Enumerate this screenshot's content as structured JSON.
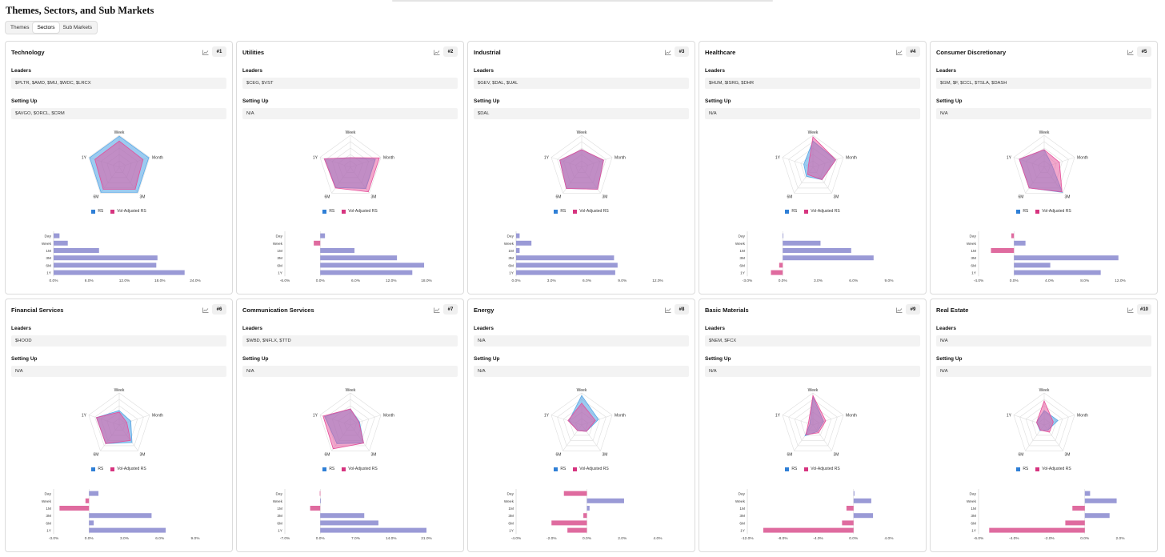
{
  "page": {
    "title": "Themes, Sectors, and Sub Markets"
  },
  "tabs": [
    {
      "label": "Themes",
      "active": false
    },
    {
      "label": "Sectors",
      "active": true
    },
    {
      "label": "Sub Markets",
      "active": false
    }
  ],
  "labels": {
    "leaders": "Leaders",
    "setting_up": "Setting Up",
    "legend_rs": "RS",
    "legend_vol": "Vol-Adjusted RS"
  },
  "colors": {
    "rs_fill": "#5aa9e6",
    "vol_fill": "#e54f9a",
    "overlap": "#9d8ac2",
    "bar_pos": "#9a9ad6",
    "bar_neg": "#df6b9f"
  },
  "radar_axes": [
    "Week",
    "Month",
    "3M",
    "6M",
    "1Y"
  ],
  "bar_categories": [
    "Day",
    "Week",
    "1M",
    "3M",
    "6M",
    "1Y"
  ],
  "cards": [
    {
      "title": "Technology",
      "rank": "#1",
      "leaders": "$PLTR, $AMD, $MU, $WDC, $LRCX",
      "setting_up": "$AVGO, $ORCL, $CRM",
      "chart_data": {
        "type": "bar",
        "categories": [
          "Day",
          "Week",
          "1M",
          "3M",
          "6M",
          "1Y"
        ],
        "values": [
          1.0,
          2.4,
          7.7,
          17.6,
          17.4,
          22.2
        ],
        "ticks": [
          "0.0%",
          "6.0%",
          "12.0%",
          "18.0%",
          "24.0%"
        ],
        "xlim": [
          0,
          24
        ]
      },
      "radar": {
        "rs": [
          0.97,
          0.97,
          0.97,
          0.97,
          0.97
        ],
        "vol": [
          0.82,
          0.78,
          0.85,
          0.85,
          0.8
        ]
      }
    },
    {
      "title": "Utilities",
      "rank": "#2",
      "leaders": "$CEG, $VST",
      "setting_up": "N/A",
      "chart_data": {
        "type": "bar",
        "categories": [
          "Day",
          "Week",
          "1M",
          "3M",
          "6M",
          "1Y"
        ],
        "values": [
          0.8,
          -1.1,
          5.8,
          13.0,
          17.6,
          15.6
        ],
        "ticks": [
          "-6.0%",
          "0.0%",
          "6.0%",
          "12.0%",
          "18.0%"
        ],
        "xlim": [
          -6,
          18
        ]
      },
      "radar": {
        "rs": [
          0.3,
          0.82,
          0.82,
          0.78,
          0.86
        ],
        "vol": [
          0.3,
          0.95,
          0.95,
          0.8,
          0.86
        ]
      }
    },
    {
      "title": "Industrial",
      "rank": "#3",
      "leaders": "$GEV, $DAL, $UAL",
      "setting_up": "$DAL",
      "chart_data": {
        "type": "bar",
        "categories": [
          "Day",
          "Week",
          "1M",
          "3M",
          "6M",
          "1Y"
        ],
        "values": [
          0.3,
          1.3,
          0.3,
          8.3,
          8.6,
          8.4
        ],
        "ticks": [
          "0.0%",
          "3.0%",
          "6.0%",
          "9.0%",
          "12.0%"
        ],
        "xlim": [
          0,
          12
        ]
      },
      "radar": {
        "rs": [
          0.55,
          0.72,
          0.85,
          0.82,
          0.72
        ],
        "vol": [
          0.55,
          0.72,
          0.85,
          0.82,
          0.72
        ]
      }
    },
    {
      "title": "Healthcare",
      "rank": "#4",
      "leaders": "$HUM, $ISRG, $DHR",
      "setting_up": "N/A",
      "chart_data": {
        "type": "bar",
        "categories": [
          "Day",
          "Week",
          "1M",
          "3M",
          "6M",
          "1Y"
        ],
        "values": [
          0.05,
          3.2,
          5.8,
          7.7,
          -0.3,
          -1.0
        ],
        "ticks": [
          "-3.0%",
          "0.0%",
          "3.0%",
          "6.0%",
          "9.0%"
        ],
        "xlim": [
          -3,
          9
        ]
      },
      "radar": {
        "rs": [
          0.82,
          0.75,
          0.48,
          0.35,
          0.3
        ],
        "vol": [
          0.95,
          0.75,
          0.48,
          0.28,
          0.15
        ]
      }
    },
    {
      "title": "Consumer Discretionary",
      "rank": "#5",
      "leaders": "$GM, $F, $CCL, $TSLA, $DASH",
      "setting_up": "N/A",
      "chart_data": {
        "type": "bar",
        "categories": [
          "Day",
          "Week",
          "1M",
          "3M",
          "6M",
          "1Y"
        ],
        "values": [
          -0.3,
          1.3,
          -2.6,
          11.8,
          4.1,
          9.8
        ],
        "ticks": [
          "-4.0%",
          "0.0%",
          "4.0%",
          "8.0%",
          "12.0%"
        ],
        "xlim": [
          -4,
          12
        ]
      },
      "radar": {
        "rs": [
          0.55,
          0.25,
          0.97,
          0.8,
          0.82
        ],
        "vol": [
          0.55,
          0.5,
          0.95,
          0.8,
          0.82
        ]
      }
    },
    {
      "title": "Financial Services",
      "rank": "#6",
      "leaders": "$HOOD",
      "setting_up": "N/A",
      "chart_data": {
        "type": "bar",
        "categories": [
          "Day",
          "Week",
          "1M",
          "3M",
          "6M",
          "1Y"
        ],
        "values": [
          0.8,
          -0.3,
          -2.5,
          5.3,
          0.4,
          6.5
        ],
        "ticks": [
          "-3.0%",
          "0.0%",
          "3.0%",
          "6.0%",
          "9.0%"
        ],
        "xlim": [
          -3,
          9
        ]
      },
      "radar": {
        "rs": [
          0.45,
          0.38,
          0.68,
          0.72,
          0.75
        ],
        "vol": [
          0.4,
          0.25,
          0.6,
          0.72,
          0.75
        ]
      }
    },
    {
      "title": "Communication Services",
      "rank": "#7",
      "leaders": "$WBD, $NFLX, $TTD",
      "setting_up": "N/A",
      "chart_data": {
        "type": "bar",
        "categories": [
          "Day",
          "Week",
          "1M",
          "3M",
          "6M",
          "1Y"
        ],
        "values": [
          -0.1,
          0.05,
          -2.0,
          8.7,
          11.5,
          21.0
        ],
        "ticks": [
          "-7.0%",
          "0.0%",
          "7.0%",
          "14.0%",
          "21.0%"
        ],
        "xlim": [
          -7,
          21
        ]
      },
      "radar": {
        "rs": [
          0.5,
          0.3,
          0.7,
          0.72,
          0.85
        ],
        "vol": [
          0.5,
          0.28,
          0.7,
          0.92,
          0.9
        ]
      }
    },
    {
      "title": "Energy",
      "rank": "#8",
      "leaders": "N/A",
      "setting_up": "N/A",
      "chart_data": {
        "type": "bar",
        "categories": [
          "Day",
          "Week",
          "1M",
          "3M",
          "6M",
          "1Y"
        ],
        "values": [
          -1.3,
          2.1,
          0.15,
          -0.2,
          -2.0,
          -1.1
        ],
        "ticks": [
          "-4.0%",
          "-2.0%",
          "0.0%",
          "2.0%",
          "4.0%"
        ],
        "xlim": [
          -4,
          4
        ]
      },
      "radar": {
        "rs": [
          0.92,
          0.55,
          0.25,
          0.22,
          0.42
        ],
        "vol": [
          0.68,
          0.45,
          0.25,
          0.22,
          0.45
        ]
      }
    },
    {
      "title": "Basic Materials",
      "rank": "#9",
      "leaders": "$NEM, $FCX",
      "setting_up": "N/A",
      "chart_data": {
        "type": "bar",
        "categories": [
          "Day",
          "Week",
          "1M",
          "3M",
          "6M",
          "1Y"
        ],
        "values": [
          0.1,
          2.0,
          -0.8,
          2.2,
          -1.3,
          -10.2
        ],
        "ticks": [
          "-12.0%",
          "-8.0%",
          "-4.0%",
          "0.0%",
          "4.0%"
        ],
        "xlim": [
          -12,
          4
        ]
      },
      "radar": {
        "rs": [
          0.88,
          0.35,
          0.25,
          0.42,
          0.1
        ],
        "vol": [
          0.92,
          0.42,
          0.3,
          0.38,
          0.15
        ]
      }
    },
    {
      "title": "Real Estate",
      "rank": "#10",
      "leaders": "N/A",
      "setting_up": "N/A",
      "chart_data": {
        "type": "bar",
        "categories": [
          "Day",
          "Week",
          "1M",
          "3M",
          "6M",
          "1Y"
        ],
        "values": [
          0.3,
          1.8,
          -0.7,
          1.4,
          -1.1,
          -5.4
        ],
        "ticks": [
          "-6.0%",
          "-4.0%",
          "-2.0%",
          "0.0%",
          "2.0%"
        ],
        "xlim": [
          -6,
          2
        ]
      },
      "radar": {
        "rs": [
          0.45,
          0.45,
          0.2,
          0.22,
          0.25
        ],
        "vol": [
          0.75,
          0.3,
          0.28,
          0.2,
          0.25
        ]
      }
    }
  ]
}
